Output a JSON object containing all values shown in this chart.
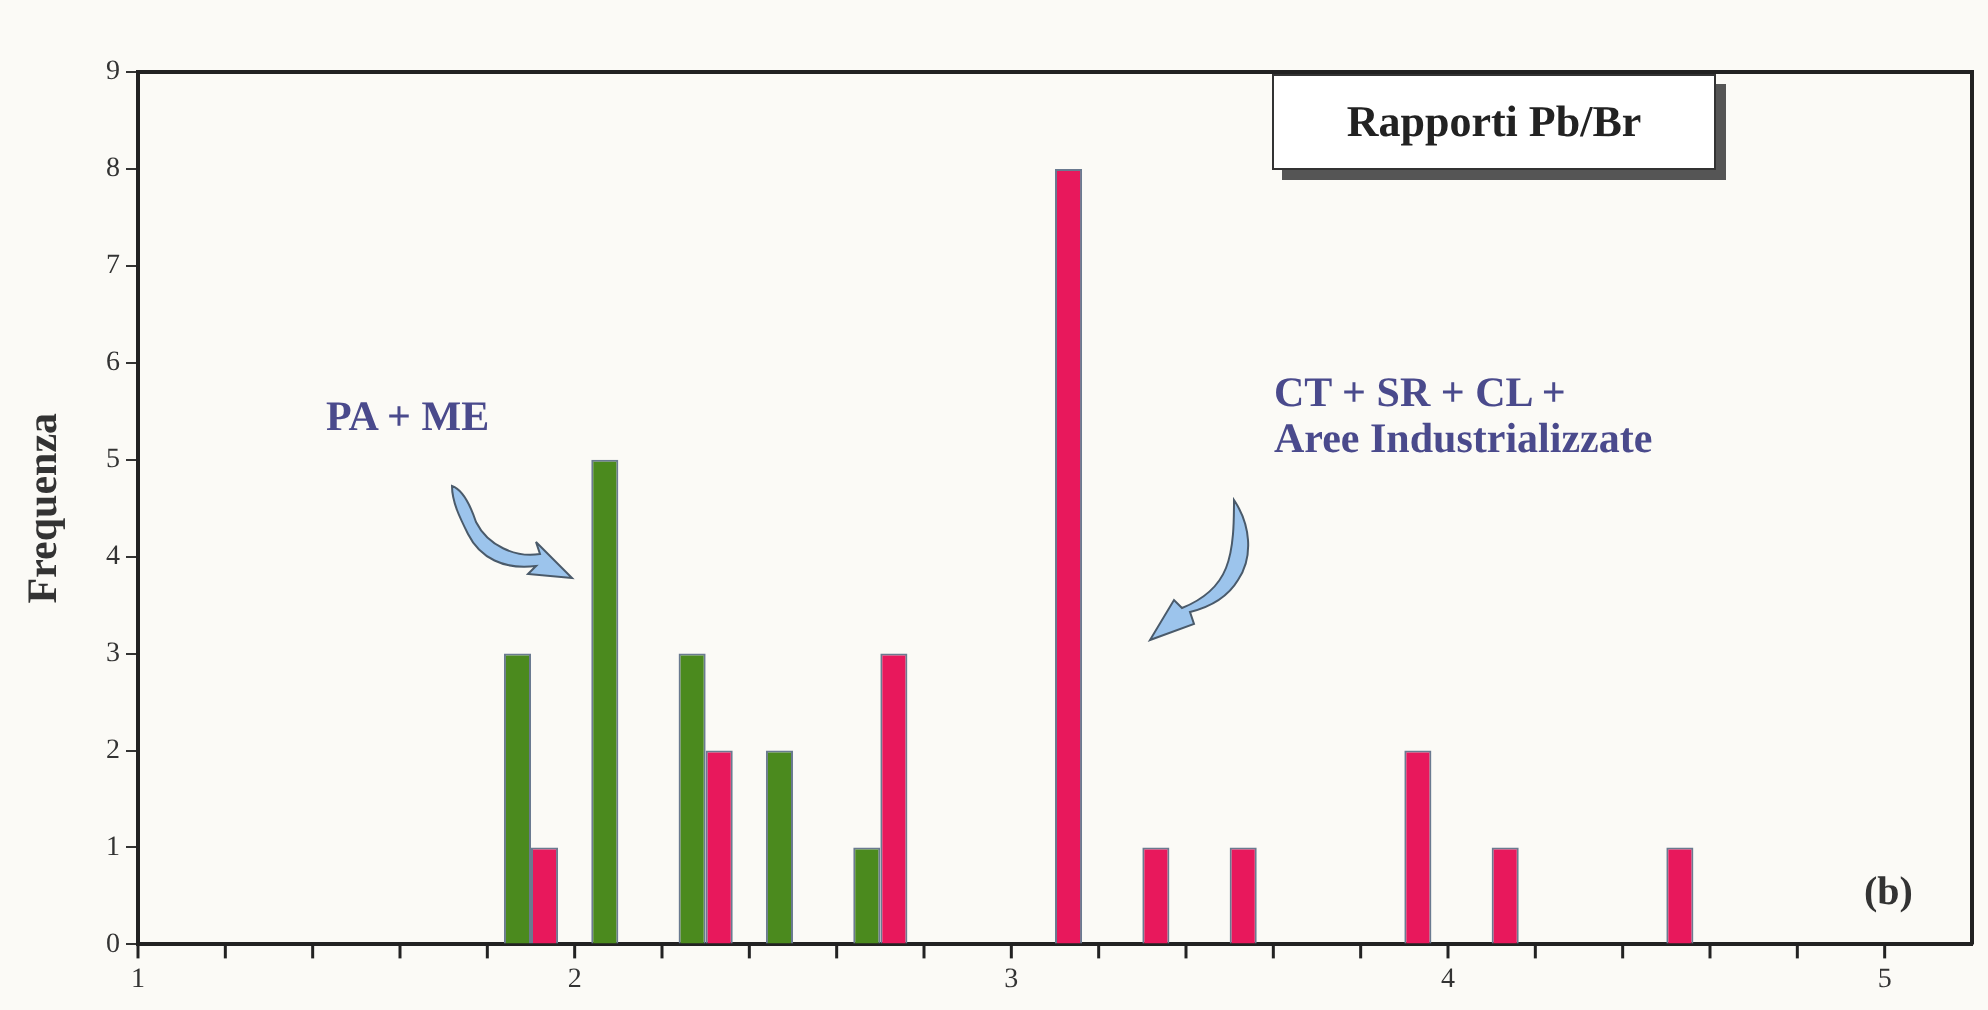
{
  "chart_data": {
    "type": "histogram",
    "title": "Rapporti Pb/Br",
    "ylabel": "Frequenza",
    "bins": [
      1,
      1.2,
      1.4,
      1.6,
      1.8,
      2,
      2.2,
      2.4,
      2.6,
      2.8,
      3,
      3.2,
      3.4,
      3.6,
      3.8,
      4,
      4.2,
      4.4,
      4.6,
      4.8,
      5
    ],
    "series": [
      {
        "color": "#4b8a1e",
        "values": [
          0,
          0,
          0,
          0,
          3,
          5,
          3,
          2,
          1,
          0,
          0,
          0,
          0,
          0,
          0,
          0,
          0,
          0,
          0,
          0
        ]
      },
      {
        "color": "#e8185c",
        "values": [
          0,
          0,
          0,
          0,
          1,
          0,
          2,
          0,
          3,
          0,
          8,
          1,
          1,
          0,
          2,
          1,
          0,
          1,
          0,
          0
        ]
      }
    ],
    "xlim": [
      1,
      5.2
    ],
    "xticks": [
      1,
      {
        "value": 1.2,
        "label": null
      },
      {
        "value": 1.4,
        "label": null
      },
      {
        "value": 1.6,
        "label": null
      },
      {
        "value": 1.8,
        "label": null
      },
      2,
      {
        "value": 2.2,
        "label": null
      },
      {
        "value": 2.4,
        "label": null
      },
      {
        "value": 2.6,
        "label": null
      },
      {
        "value": 2.8,
        "label": null
      },
      3,
      {
        "value": 3.2,
        "label": null
      },
      {
        "value": 3.4,
        "label": null
      },
      {
        "value": 3.6,
        "label": null
      },
      {
        "value": 3.8,
        "label": null
      },
      4,
      {
        "value": 4.2,
        "label": null
      },
      {
        "value": 4.4,
        "label": null
      },
      {
        "value": 4.6,
        "label": null
      },
      {
        "value": 4.8,
        "label": null
      },
      5
    ],
    "ylim": [
      0,
      9
    ],
    "yticks": [
      0,
      1,
      2,
      3,
      4,
      5,
      6,
      7,
      8,
      9
    ],
    "annotations": [
      "PA + ME",
      "CT + SR + CL +\nAree Industrializzate",
      "(b)"
    ]
  }
}
